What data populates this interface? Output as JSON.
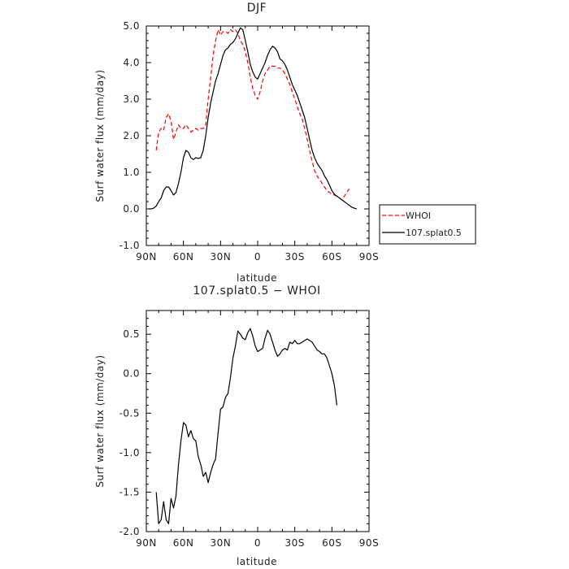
{
  "chart_data": [
    {
      "type": "line",
      "title": "DJF",
      "xlabel": "latitude",
      "ylabel": "Surf water flux (mm/day)",
      "xlim": [
        90,
        -90
      ],
      "ylim": [
        -1.0,
        5.0
      ],
      "x_ticks": [
        90,
        60,
        30,
        0,
        -30,
        -60,
        -90
      ],
      "x_tick_labels": [
        "90N",
        "60N",
        "30N",
        "0",
        "30S",
        "60S",
        "90S"
      ],
      "y_ticks": [
        -1.0,
        0.0,
        1.0,
        2.0,
        3.0,
        4.0,
        5.0
      ],
      "y_tick_labels": [
        "-1.0",
        "0.0",
        "1.0",
        "2.0",
        "3.0",
        "4.0",
        "5.0"
      ],
      "legend_position": "right",
      "series": [
        {
          "name": "WHOI",
          "color": "#ff0000",
          "dash": "dashed",
          "points": [
            [
              82,
              1.6
            ],
            [
              80,
              2.1
            ],
            [
              78,
              2.2
            ],
            [
              76,
              2.15
            ],
            [
              74,
              2.5
            ],
            [
              72,
              2.6
            ],
            [
              70,
              2.4
            ],
            [
              68,
              1.9
            ],
            [
              66,
              2.1
            ],
            [
              64,
              2.3
            ],
            [
              62,
              2.2
            ],
            [
              60,
              2.2
            ],
            [
              58,
              2.3
            ],
            [
              56,
              2.2
            ],
            [
              54,
              2.1
            ],
            [
              52,
              2.15
            ],
            [
              50,
              2.2
            ],
            [
              48,
              2.15
            ],
            [
              46,
              2.2
            ],
            [
              44,
              2.2
            ],
            [
              42,
              2.3
            ],
            [
              40,
              3.0
            ],
            [
              38,
              3.6
            ],
            [
              36,
              4.2
            ],
            [
              34,
              4.6
            ],
            [
              32,
              4.9
            ],
            [
              30,
              4.75
            ],
            [
              28,
              4.85
            ],
            [
              26,
              4.85
            ],
            [
              24,
              4.8
            ],
            [
              22,
              4.9
            ],
            [
              20,
              4.85
            ],
            [
              18,
              4.9
            ],
            [
              16,
              4.8
            ],
            [
              14,
              4.6
            ],
            [
              12,
              4.5
            ],
            [
              10,
              4.3
            ],
            [
              8,
              4.0
            ],
            [
              6,
              3.6
            ],
            [
              4,
              3.3
            ],
            [
              2,
              3.1
            ],
            [
              0,
              3.0
            ],
            [
              -2,
              3.2
            ],
            [
              -4,
              3.5
            ],
            [
              -6,
              3.7
            ],
            [
              -8,
              3.8
            ],
            [
              -10,
              3.9
            ],
            [
              -12,
              3.9
            ],
            [
              -14,
              3.9
            ],
            [
              -16,
              3.85
            ],
            [
              -18,
              3.85
            ],
            [
              -20,
              3.8
            ],
            [
              -22,
              3.7
            ],
            [
              -24,
              3.55
            ],
            [
              -26,
              3.4
            ],
            [
              -28,
              3.2
            ],
            [
              -30,
              3.0
            ],
            [
              -32,
              2.8
            ],
            [
              -34,
              2.6
            ],
            [
              -36,
              2.45
            ],
            [
              -38,
              2.2
            ],
            [
              -40,
              1.9
            ],
            [
              -42,
              1.6
            ],
            [
              -44,
              1.3
            ],
            [
              -46,
              1.05
            ],
            [
              -48,
              0.9
            ],
            [
              -50,
              0.8
            ],
            [
              -52,
              0.7
            ],
            [
              -54,
              0.6
            ],
            [
              -56,
              0.5
            ],
            [
              -58,
              0.45
            ],
            [
              -60,
              0.4
            ],
            [
              -62,
              0.38
            ],
            [
              -64,
              0.35
            ],
            [
              -66,
              0.3
            ],
            [
              -68,
              0.25
            ],
            [
              -70,
              0.35
            ],
            [
              -72,
              0.45
            ],
            [
              -74,
              0.55
            ]
          ]
        },
        {
          "name": "107.splat0.5",
          "color": "#000000",
          "dash": "solid",
          "points": [
            [
              88,
              0.0
            ],
            [
              86,
              0.0
            ],
            [
              84,
              0.02
            ],
            [
              82,
              0.08
            ],
            [
              80,
              0.2
            ],
            [
              78,
              0.3
            ],
            [
              76,
              0.5
            ],
            [
              74,
              0.6
            ],
            [
              72,
              0.6
            ],
            [
              70,
              0.5
            ],
            [
              68,
              0.38
            ],
            [
              66,
              0.45
            ],
            [
              64,
              0.7
            ],
            [
              62,
              1.0
            ],
            [
              60,
              1.4
            ],
            [
              58,
              1.6
            ],
            [
              56,
              1.55
            ],
            [
              54,
              1.4
            ],
            [
              52,
              1.35
            ],
            [
              50,
              1.4
            ],
            [
              48,
              1.38
            ],
            [
              46,
              1.4
            ],
            [
              44,
              1.6
            ],
            [
              42,
              2.0
            ],
            [
              40,
              2.5
            ],
            [
              38,
              2.9
            ],
            [
              36,
              3.2
            ],
            [
              34,
              3.5
            ],
            [
              32,
              3.7
            ],
            [
              30,
              3.95
            ],
            [
              28,
              4.2
            ],
            [
              26,
              4.35
            ],
            [
              24,
              4.4
            ],
            [
              22,
              4.5
            ],
            [
              20,
              4.55
            ],
            [
              18,
              4.65
            ],
            [
              16,
              4.8
            ],
            [
              14,
              4.95
            ],
            [
              12,
              4.9
            ],
            [
              10,
              4.6
            ],
            [
              8,
              4.3
            ],
            [
              6,
              3.95
            ],
            [
              4,
              3.75
            ],
            [
              2,
              3.6
            ],
            [
              0,
              3.55
            ],
            [
              -2,
              3.7
            ],
            [
              -4,
              3.85
            ],
            [
              -6,
              4.0
            ],
            [
              -8,
              4.2
            ],
            [
              -10,
              4.35
            ],
            [
              -12,
              4.45
            ],
            [
              -14,
              4.4
            ],
            [
              -16,
              4.3
            ],
            [
              -18,
              4.1
            ],
            [
              -20,
              4.05
            ],
            [
              -22,
              3.95
            ],
            [
              -24,
              3.8
            ],
            [
              -26,
              3.6
            ],
            [
              -28,
              3.4
            ],
            [
              -30,
              3.25
            ],
            [
              -32,
              3.1
            ],
            [
              -34,
              2.9
            ],
            [
              -36,
              2.7
            ],
            [
              -38,
              2.5
            ],
            [
              -40,
              2.2
            ],
            [
              -42,
              1.9
            ],
            [
              -44,
              1.6
            ],
            [
              -46,
              1.4
            ],
            [
              -48,
              1.25
            ],
            [
              -50,
              1.15
            ],
            [
              -52,
              1.05
            ],
            [
              -54,
              0.9
            ],
            [
              -56,
              0.8
            ],
            [
              -58,
              0.65
            ],
            [
              -60,
              0.5
            ],
            [
              -62,
              0.4
            ],
            [
              -64,
              0.35
            ],
            [
              -66,
              0.3
            ],
            [
              -68,
              0.25
            ],
            [
              -70,
              0.2
            ],
            [
              -72,
              0.15
            ],
            [
              -74,
              0.1
            ],
            [
              -76,
              0.05
            ],
            [
              -78,
              0.02
            ],
            [
              -80,
              0.0
            ]
          ]
        }
      ]
    },
    {
      "type": "line",
      "title": "107.splat0.5 − WHOI",
      "xlabel": "latitude",
      "ylabel": "Surf water flux (mm/day)",
      "xlim": [
        90,
        -90
      ],
      "ylim": [
        -2.0,
        0.8
      ],
      "x_ticks": [
        90,
        60,
        30,
        0,
        -30,
        -60,
        -90
      ],
      "x_tick_labels": [
        "90N",
        "60N",
        "30N",
        "0",
        "30S",
        "60S",
        "90S"
      ],
      "y_ticks": [
        -2.0,
        -1.5,
        -1.0,
        -0.5,
        0.0,
        0.5
      ],
      "y_tick_labels": [
        "-2.0",
        "-1.5",
        "-1.0",
        "-0.5",
        "0.0",
        "0.5"
      ],
      "series": [
        {
          "name": "",
          "color": "#000000",
          "dash": "solid",
          "points": [
            [
              82,
              -1.5
            ],
            [
              80,
              -1.9
            ],
            [
              78,
              -1.85
            ],
            [
              76,
              -1.62
            ],
            [
              74,
              -1.85
            ],
            [
              72,
              -1.9
            ],
            [
              70,
              -1.58
            ],
            [
              68,
              -1.7
            ],
            [
              66,
              -1.55
            ],
            [
              64,
              -1.15
            ],
            [
              62,
              -0.85
            ],
            [
              60,
              -0.62
            ],
            [
              58,
              -0.65
            ],
            [
              56,
              -0.8
            ],
            [
              54,
              -0.72
            ],
            [
              52,
              -0.82
            ],
            [
              50,
              -0.85
            ],
            [
              48,
              -1.05
            ],
            [
              46,
              -1.15
            ],
            [
              44,
              -1.3
            ],
            [
              42,
              -1.25
            ],
            [
              40,
              -1.38
            ],
            [
              38,
              -1.25
            ],
            [
              36,
              -1.15
            ],
            [
              34,
              -1.08
            ],
            [
              32,
              -0.75
            ],
            [
              30,
              -0.45
            ],
            [
              28,
              -0.42
            ],
            [
              26,
              -0.3
            ],
            [
              24,
              -0.25
            ],
            [
              22,
              -0.05
            ],
            [
              20,
              0.2
            ],
            [
              18,
              0.35
            ],
            [
              16,
              0.54
            ],
            [
              14,
              0.5
            ],
            [
              12,
              0.45
            ],
            [
              10,
              0.43
            ],
            [
              8,
              0.52
            ],
            [
              6,
              0.57
            ],
            [
              4,
              0.48
            ],
            [
              2,
              0.35
            ],
            [
              0,
              0.28
            ],
            [
              -2,
              0.3
            ],
            [
              -4,
              0.32
            ],
            [
              -6,
              0.45
            ],
            [
              -8,
              0.55
            ],
            [
              -10,
              0.5
            ],
            [
              -12,
              0.4
            ],
            [
              -14,
              0.3
            ],
            [
              -16,
              0.22
            ],
            [
              -18,
              0.25
            ],
            [
              -20,
              0.3
            ],
            [
              -22,
              0.32
            ],
            [
              -24,
              0.3
            ],
            [
              -26,
              0.4
            ],
            [
              -28,
              0.38
            ],
            [
              -30,
              0.42
            ],
            [
              -32,
              0.38
            ],
            [
              -34,
              0.38
            ],
            [
              -36,
              0.4
            ],
            [
              -38,
              0.42
            ],
            [
              -40,
              0.44
            ],
            [
              -42,
              0.42
            ],
            [
              -44,
              0.4
            ],
            [
              -46,
              0.35
            ],
            [
              -48,
              0.3
            ],
            [
              -50,
              0.28
            ],
            [
              -52,
              0.25
            ],
            [
              -54,
              0.25
            ],
            [
              -56,
              0.2
            ],
            [
              -58,
              0.1
            ],
            [
              -60,
              0.0
            ],
            [
              -62,
              -0.15
            ],
            [
              -64,
              -0.4
            ]
          ]
        }
      ]
    }
  ]
}
